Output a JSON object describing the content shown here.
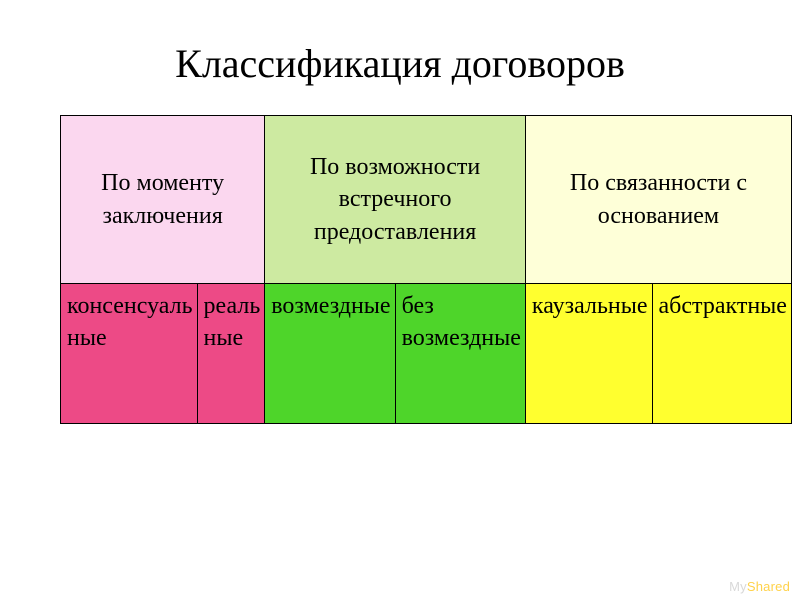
{
  "title": "Классификация договоров",
  "table": {
    "header_row_height": 168,
    "sub_row_height": 140,
    "border_color": "#000000",
    "header_fontsize": 24,
    "sub_fontsize": 24,
    "headers": [
      {
        "text": "По моменту заключения",
        "bg": "#fbd7ef"
      },
      {
        "text": "По возможности встречного предоставления",
        "bg": "#cdeaa1"
      },
      {
        "text": "По связанности с основанием",
        "bg": "#feffd8"
      }
    ],
    "subcells": [
      {
        "text": "консенсуаль\nные",
        "bg": "#ed4a86"
      },
      {
        "text": "реаль\nные",
        "bg": "#ed4a86"
      },
      {
        "text": "возмездные",
        "bg": "#4ed52a"
      },
      {
        "text": "без\nвозмездные",
        "bg": "#4ed52a"
      },
      {
        "text": "каузальные",
        "bg": "#ffff2f"
      },
      {
        "text": "абстрактные",
        "bg": "#ffff2f"
      }
    ]
  },
  "watermark": {
    "prefix": "My",
    "suffix": "Shared"
  }
}
